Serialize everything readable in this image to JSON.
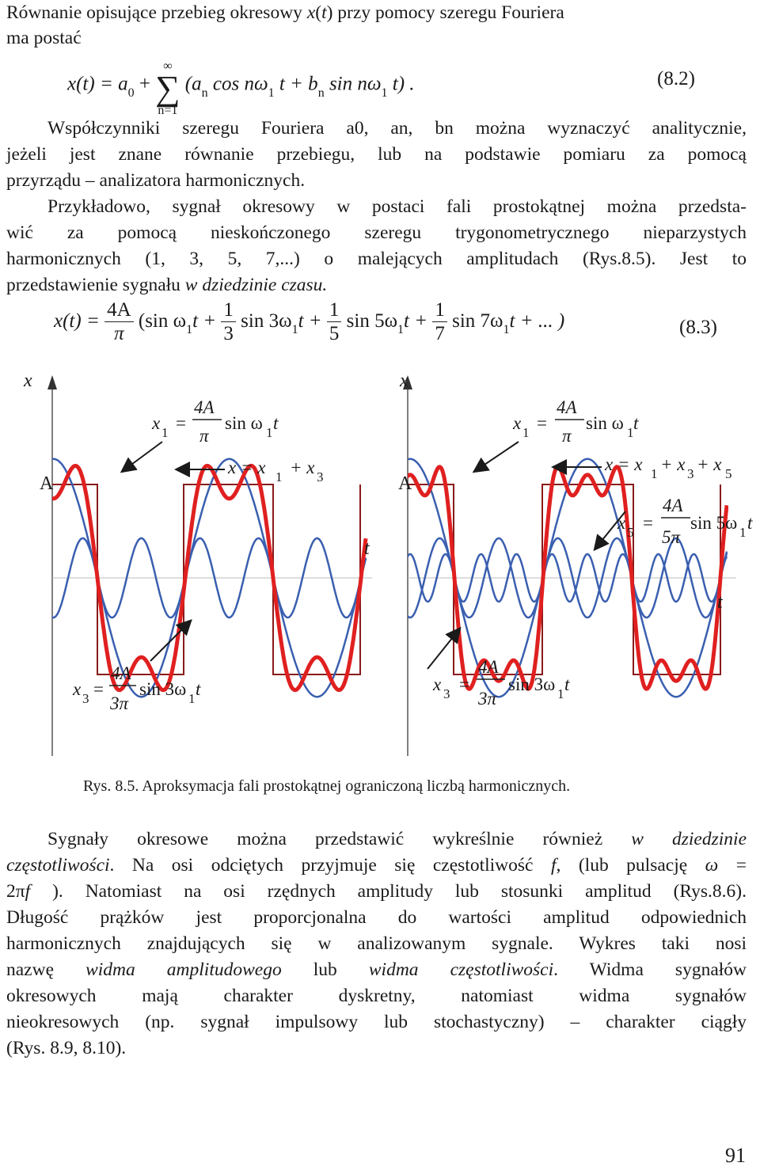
{
  "intro": {
    "line1_a": "Równanie opisujące przebieg okresowy ",
    "line1_var": "x",
    "line1_b": "(",
    "line1_t": "t",
    "line1_c": ") przy pomocy szeregu Fouriera",
    "line2": "ma postać"
  },
  "eq82": {
    "lhs": "x(t) = a",
    "a0_sub": "0",
    "plus": "+",
    "sum_top": "∞",
    "sum_bottom": "n=1",
    "body_a": "(a",
    "n_sub": "n",
    "body_b": " cos nω",
    "one_sub": "1",
    "body_c": " t + b",
    "body_d": " sin nω",
    "body_e": " t) .",
    "number": "(8.2)"
  },
  "para_coeff": {
    "l1": "Współczynniki szeregu Fouriera a0, an, bn można wyznaczyć analitycznie,",
    "l2": "jeżeli jest znane równanie przebiegu, lub na podstawie pomiaru za pomocą",
    "l3": "przyrządu – analizatora harmonicznych."
  },
  "para_example": {
    "l1": "Przykładowo, sygnał okresowy w postaci fali prostokątnej można przedsta-",
    "l2": "wić za pomocą nieskończonego szeregu trygonometrycznego nieparzystych",
    "l3": "harmonicznych (1, 3, 5, 7,...) o malejących amplitudach (Rys.8.5). Jest to",
    "l4a": "przedstawienie sygnału ",
    "l4b": "w dziedzinie czasu."
  },
  "eq83": {
    "lhs": "x(t) =",
    "num4A": "4A",
    "den_pi": "π",
    "t1": "(sin ω",
    "t1b": "t +",
    "one": "1",
    "three": "3",
    "t2": "sin 3ω",
    "t2b": "t +",
    "five": "5",
    "t3": "sin 5ω",
    "t3b": "t +",
    "seven": "7",
    "t4": "sin 7ω",
    "t4b": "t + ... )",
    "sub1": "1",
    "number": "(8.3)"
  },
  "figure": {
    "left": {
      "axis_x": "x",
      "amp": "A",
      "axis_t": "t",
      "f1_lhs": "x",
      "f1_sub": "1",
      "f1_eq": "=",
      "f1_num": "4A",
      "f1_den": "π",
      "f1_rhs": "sin ω",
      "f1_rsub": "1",
      "f1_t": "t",
      "sum_label": "x = x",
      "sum_s1": "1",
      "sum_plus": "+ x",
      "sum_s3": "3",
      "f3_lhs": "x",
      "f3_sub": "3",
      "f3_eq": "=",
      "f3_num": "4A",
      "f3_den": "3π",
      "f3_rhs": "sin 3ω",
      "f3_rsub": "1",
      "f3_t": "t"
    },
    "right": {
      "axis_x": "x",
      "amp": "A",
      "axis_t": "t",
      "f1_lhs": "x",
      "f1_sub": "1",
      "f1_eq": "=",
      "f1_num": "4A",
      "f1_den": "π",
      "f1_rhs": "sin ω",
      "f1_rsub": "1",
      "f1_t": "t",
      "sum_label": "x = x",
      "sum_s1": "1",
      "sum_plus": "+ x",
      "sum_s3": "3",
      "sum_plus2": "+ x",
      "sum_s5": "5",
      "f5_lhs": "x",
      "f5_sub": "5",
      "f5_eq": "=",
      "f5_num": "4A",
      "f5_den": "5π",
      "f5_rhs": "sin 5ω",
      "f5_rsub": "1",
      "f5_t": "t",
      "f3_lhs": "x",
      "f3_sub": "3",
      "f3_eq": "=",
      "f3_num": "4A",
      "f3_den": "3π",
      "f3_rhs": "sin 3ω",
      "f3_rsub": "1",
      "f3_t": "t"
    },
    "colors": {
      "sum_curve": "#e02020",
      "harmonic_curve": "#3a5fb0",
      "square": "#8a1a1a"
    }
  },
  "caption": "Rys. 8.5. Aproksymacja fali prostokątnej ograniczoną liczbą harmonicznych.",
  "para_freq": {
    "l1a": "Sygnały okresowe można przedstawić wykreślnie również ",
    "l1b": "w dziedzinie",
    "l2a": "częstotliwości",
    "l2b": ". Na osi odciętych przyjmuje się częstotliwość ",
    "l2c": "f",
    "l2d": ", (lub pulsację ",
    "l2e": "ω",
    "l2f": " =",
    "l3a": "2π",
    "l3b": "f",
    "l3c": " ). Natomiast na osi rzędnych amplitudy lub stosunki amplitud (Rys.8.6).",
    "l4": "Długość prążków jest proporcjonalna do wartości amplitud odpowiednich",
    "l5": "harmonicznych znajdujących się w analizowanym sygnale. Wykres taki nosi",
    "l6a": "nazwę ",
    "l6b": "widma amplitudowego",
    "l6c": " lub ",
    "l6d": "widma częstotliwości",
    "l6e": ". Widma sygnałów",
    "l7": "okresowych mają charakter dyskretny, natomiast widma sygnałów",
    "l8": "nieokresowych (np. sygnał impulsowy lub stochastyczny) – charakter ciągły",
    "l9": "(Rys. 8.9, 8.10)."
  },
  "page_number": "91"
}
